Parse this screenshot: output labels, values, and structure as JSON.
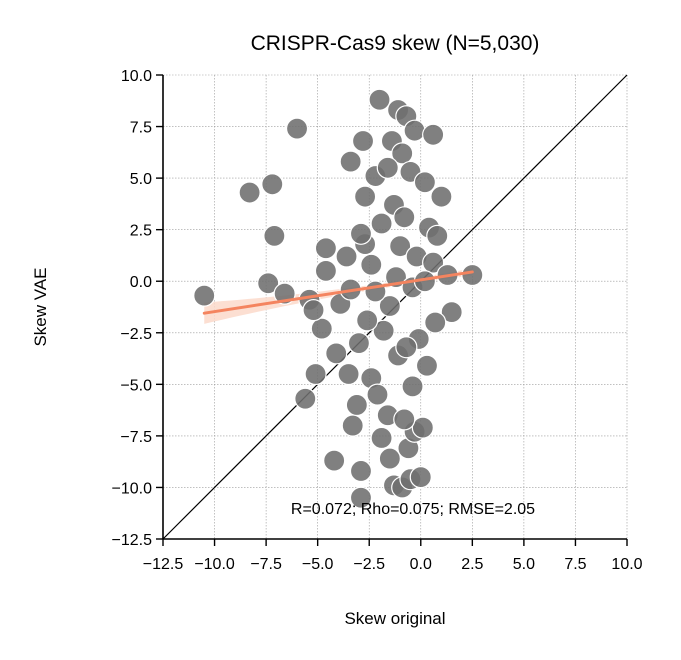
{
  "chart_data": {
    "type": "scatter",
    "title": "CRISPR-Cas9 skew (N=5,030)",
    "xlabel": "Skew original",
    "ylabel": "Skew VAE",
    "xlim": [
      -12.5,
      10.0
    ],
    "ylim": [
      -12.5,
      10.0
    ],
    "xticks": [
      "−12.5",
      "−10.0",
      "−7.5",
      "−5.0",
      "−2.5",
      "0.0",
      "2.5",
      "5.0",
      "7.5",
      "10.0"
    ],
    "yticks": [
      "10.0",
      "7.5",
      "5.0",
      "2.5",
      "0.0",
      "−2.5",
      "−5.0",
      "−7.5",
      "−10.0",
      "−12.5"
    ],
    "grid": true,
    "annotation": "R=0.072; Rho=0.075; RMSE=2.05",
    "identity_line": true,
    "regression_line": {
      "x0": -10.5,
      "y0": -1.55,
      "x1": 2.5,
      "y1": 0.45,
      "color": "#f4845f"
    },
    "colors": {
      "points": "#6e6e6e",
      "point_edge": "#ffffff",
      "regression": "#f4845f",
      "ci_band": "#fbd9ca",
      "identity": "#000000"
    },
    "points": [
      {
        "x": -10.5,
        "y": -0.7
      },
      {
        "x": -8.3,
        "y": 4.3
      },
      {
        "x": -7.2,
        "y": 4.7
      },
      {
        "x": -6.0,
        "y": 7.4
      },
      {
        "x": -7.1,
        "y": 2.2
      },
      {
        "x": -7.4,
        "y": -0.1
      },
      {
        "x": -6.6,
        "y": -0.6
      },
      {
        "x": -5.4,
        "y": -0.9
      },
      {
        "x": -5.6,
        "y": -5.7
      },
      {
        "x": -4.2,
        "y": -8.7
      },
      {
        "x": -2.9,
        "y": -10.5
      },
      {
        "x": -2.9,
        "y": -9.2
      },
      {
        "x": -3.3,
        "y": -7.0
      },
      {
        "x": -3.1,
        "y": -6.0
      },
      {
        "x": -3.5,
        "y": -4.5
      },
      {
        "x": -5.1,
        "y": -4.5
      },
      {
        "x": -4.8,
        "y": -2.3
      },
      {
        "x": -4.1,
        "y": -3.5
      },
      {
        "x": -3.0,
        "y": -3.0
      },
      {
        "x": -2.4,
        "y": -4.7
      },
      {
        "x": -2.1,
        "y": -5.5
      },
      {
        "x": -1.6,
        "y": -6.5
      },
      {
        "x": -1.9,
        "y": -7.6
      },
      {
        "x": -1.5,
        "y": -8.6
      },
      {
        "x": -1.3,
        "y": -9.9
      },
      {
        "x": -0.9,
        "y": -10.0
      },
      {
        "x": -0.5,
        "y": -9.6
      },
      {
        "x": 0.0,
        "y": -9.5
      },
      {
        "x": -0.6,
        "y": -8.1
      },
      {
        "x": -0.3,
        "y": -7.3
      },
      {
        "x": 0.1,
        "y": -7.1
      },
      {
        "x": -0.8,
        "y": -6.7
      },
      {
        "x": -0.4,
        "y": -5.1
      },
      {
        "x": 0.3,
        "y": -4.1
      },
      {
        "x": -1.1,
        "y": -3.6
      },
      {
        "x": -1.8,
        "y": -2.4
      },
      {
        "x": -2.6,
        "y": -1.9
      },
      {
        "x": -3.9,
        "y": -1.1
      },
      {
        "x": -5.2,
        "y": -1.4
      },
      {
        "x": -3.4,
        "y": -0.4
      },
      {
        "x": -4.6,
        "y": 0.5
      },
      {
        "x": -3.6,
        "y": 1.2
      },
      {
        "x": -4.6,
        "y": 1.6
      },
      {
        "x": -2.7,
        "y": 1.8
      },
      {
        "x": -1.9,
        "y": 2.8
      },
      {
        "x": -2.7,
        "y": 4.1
      },
      {
        "x": -2.2,
        "y": 5.1
      },
      {
        "x": -3.4,
        "y": 5.8
      },
      {
        "x": -2.8,
        "y": 6.8
      },
      {
        "x": -2.0,
        "y": 8.8
      },
      {
        "x": -1.1,
        "y": 8.3
      },
      {
        "x": -0.7,
        "y": 8.0
      },
      {
        "x": -0.3,
        "y": 7.3
      },
      {
        "x": 0.6,
        "y": 7.1
      },
      {
        "x": -1.4,
        "y": 6.8
      },
      {
        "x": -0.9,
        "y": 6.2
      },
      {
        "x": -1.6,
        "y": 5.5
      },
      {
        "x": -0.5,
        "y": 5.3
      },
      {
        "x": 0.2,
        "y": 4.8
      },
      {
        "x": 1.0,
        "y": 4.1
      },
      {
        "x": -1.3,
        "y": 3.7
      },
      {
        "x": -0.8,
        "y": 3.1
      },
      {
        "x": 0.4,
        "y": 2.6
      },
      {
        "x": 0.8,
        "y": 2.2
      },
      {
        "x": -1.0,
        "y": 1.7
      },
      {
        "x": -0.2,
        "y": 1.2
      },
      {
        "x": 0.6,
        "y": 0.9
      },
      {
        "x": 1.3,
        "y": 0.3
      },
      {
        "x": 2.5,
        "y": 0.3
      },
      {
        "x": 1.5,
        "y": -1.5
      },
      {
        "x": 0.7,
        "y": -2.0
      },
      {
        "x": -0.1,
        "y": -2.8
      },
      {
        "x": -0.7,
        "y": -3.2
      },
      {
        "x": -1.5,
        "y": -1.2
      },
      {
        "x": -2.2,
        "y": -0.5
      },
      {
        "x": -1.2,
        "y": 0.2
      },
      {
        "x": -0.4,
        "y": -0.3
      },
      {
        "x": 0.2,
        "y": 0.0
      },
      {
        "x": -2.9,
        "y": 2.3
      },
      {
        "x": -2.4,
        "y": 0.8
      }
    ]
  }
}
